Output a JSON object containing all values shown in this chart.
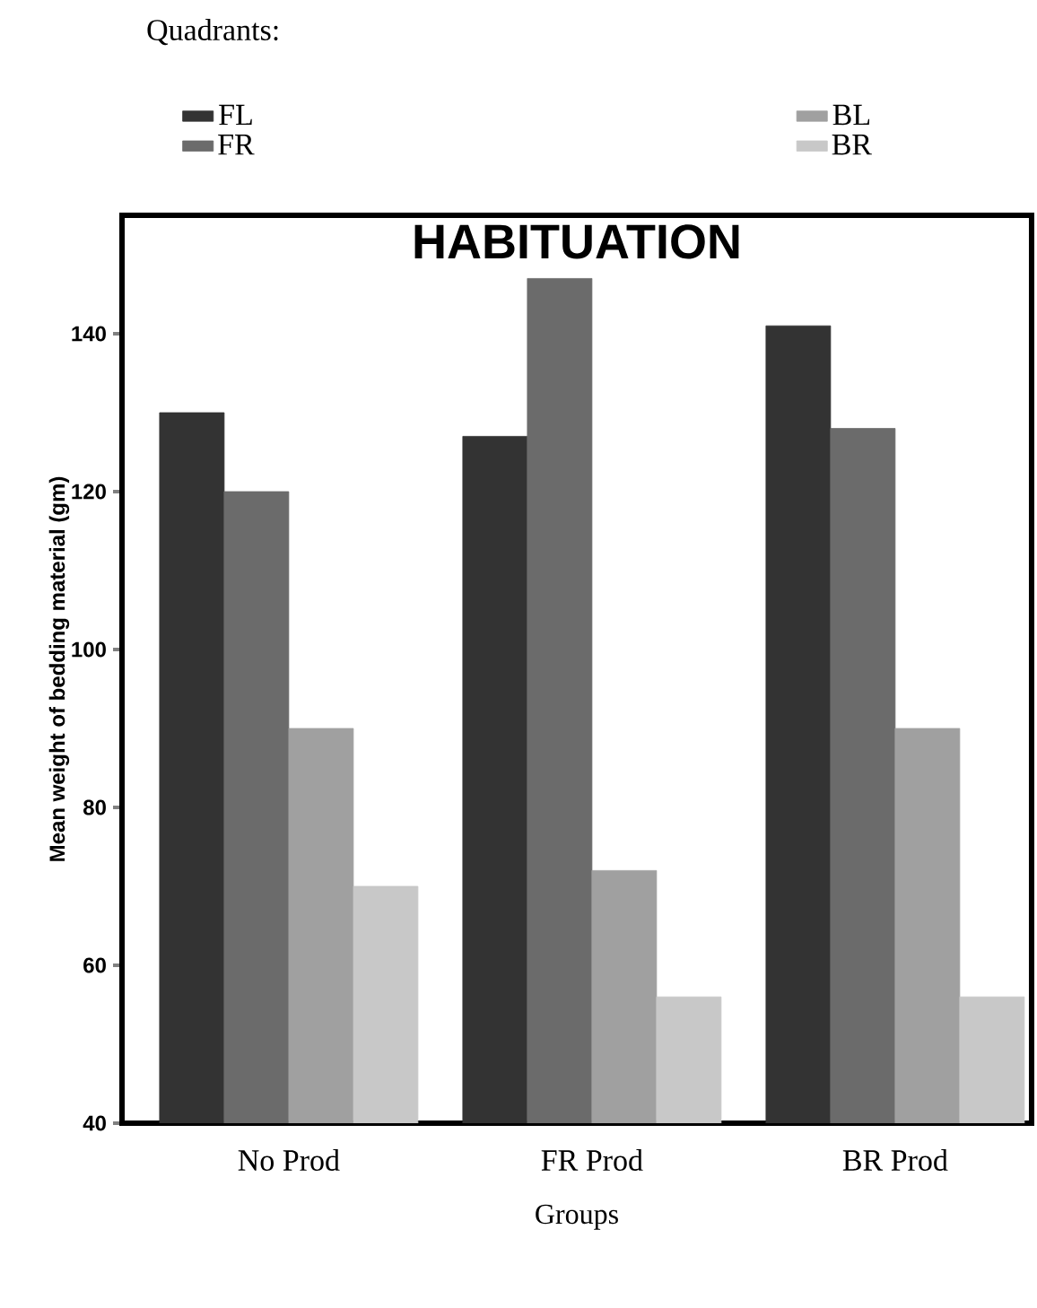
{
  "chart_data": {
    "type": "bar",
    "title": "HABITUATION",
    "xlabel": "Groups",
    "ylabel": "Mean weight of bedding material (gm)",
    "legend_title": "Quadrants:",
    "legend": "top",
    "categories": [
      "No Prod",
      "FR Prod",
      "BR Prod"
    ],
    "series": [
      {
        "name": "FL",
        "color": "#333333",
        "values": [
          130,
          127,
          141
        ]
      },
      {
        "name": "FR",
        "color": "#6b6b6b",
        "values": [
          120,
          147,
          128
        ]
      },
      {
        "name": "BL",
        "color": "#a0a0a0",
        "values": [
          90,
          72,
          90
        ]
      },
      {
        "name": "BR",
        "color": "#c8c8c8",
        "values": [
          70,
          56,
          56
        ]
      }
    ],
    "ylim": [
      40,
      155
    ],
    "yticks": [
      40,
      60,
      80,
      100,
      120,
      140
    ],
    "grid": false
  }
}
